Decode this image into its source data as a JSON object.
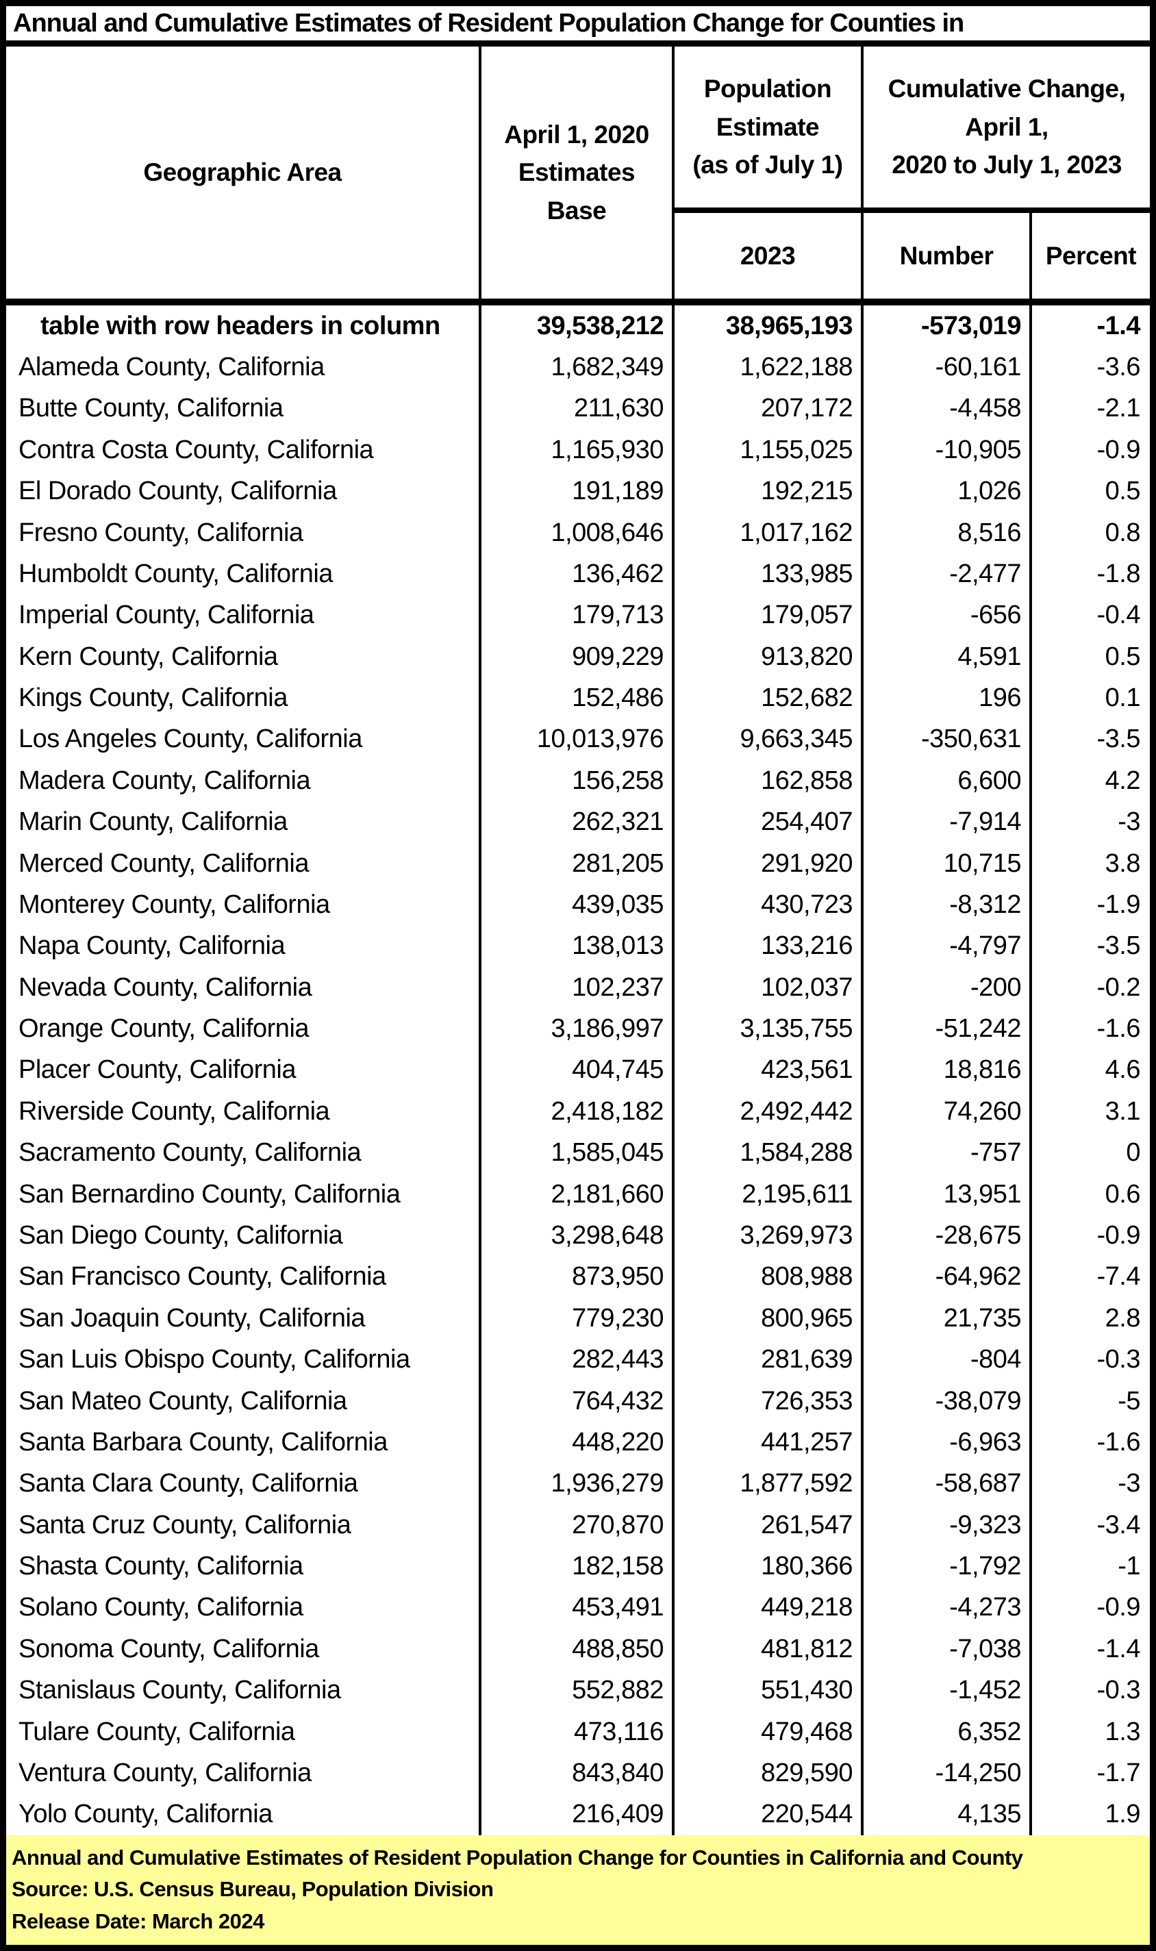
{
  "title": "Annual and Cumulative Estimates of Resident Population Change for Counties in",
  "header": {
    "geographic_area": "Geographic Area",
    "estimates_base": "April 1, 2020\nEstimates\nBase",
    "population_estimate": "Population\nEstimate\n(as of July 1)",
    "cumulative_change": "Cumulative Change,\nApril 1,\n2020 to July 1, 2023",
    "year": "2023",
    "number": "Number",
    "percent": "Percent"
  },
  "rows": [
    {
      "area": "table with row headers in column",
      "base": "39,538,212",
      "estimate": "38,965,193",
      "number": "-573,019",
      "percent": "-1.4",
      "bold": true,
      "indent": true
    },
    {
      "area": "Alameda County, California",
      "base": "1,682,349",
      "estimate": "1,622,188",
      "number": "-60,161",
      "percent": "-3.6"
    },
    {
      "area": "Butte County, California",
      "base": "211,630",
      "estimate": "207,172",
      "number": "-4,458",
      "percent": "-2.1"
    },
    {
      "area": "Contra Costa County, California",
      "base": "1,165,930",
      "estimate": "1,155,025",
      "number": "-10,905",
      "percent": "-0.9"
    },
    {
      "area": "El Dorado County, California",
      "base": "191,189",
      "estimate": "192,215",
      "number": "1,026",
      "percent": "0.5"
    },
    {
      "area": "Fresno County, California",
      "base": "1,008,646",
      "estimate": "1,017,162",
      "number": "8,516",
      "percent": "0.8"
    },
    {
      "area": "Humboldt County, California",
      "base": "136,462",
      "estimate": "133,985",
      "number": "-2,477",
      "percent": "-1.8"
    },
    {
      "area": "Imperial County, California",
      "base": "179,713",
      "estimate": "179,057",
      "number": "-656",
      "percent": "-0.4"
    },
    {
      "area": "Kern County, California",
      "base": "909,229",
      "estimate": "913,820",
      "number": "4,591",
      "percent": "0.5"
    },
    {
      "area": "Kings County, California",
      "base": "152,486",
      "estimate": "152,682",
      "number": "196",
      "percent": "0.1"
    },
    {
      "area": "Los Angeles County, California",
      "base": "10,013,976",
      "estimate": "9,663,345",
      "number": "-350,631",
      "percent": "-3.5"
    },
    {
      "area": "Madera County, California",
      "base": "156,258",
      "estimate": "162,858",
      "number": "6,600",
      "percent": "4.2"
    },
    {
      "area": "Marin County, California",
      "base": "262,321",
      "estimate": "254,407",
      "number": "-7,914",
      "percent": "-3"
    },
    {
      "area": "Merced County, California",
      "base": "281,205",
      "estimate": "291,920",
      "number": "10,715",
      "percent": "3.8"
    },
    {
      "area": "Monterey County, California",
      "base": "439,035",
      "estimate": "430,723",
      "number": "-8,312",
      "percent": "-1.9"
    },
    {
      "area": "Napa County, California",
      "base": "138,013",
      "estimate": "133,216",
      "number": "-4,797",
      "percent": "-3.5"
    },
    {
      "area": "Nevada County, California",
      "base": "102,237",
      "estimate": "102,037",
      "number": "-200",
      "percent": "-0.2"
    },
    {
      "area": "Orange County, California",
      "base": "3,186,997",
      "estimate": "3,135,755",
      "number": "-51,242",
      "percent": "-1.6"
    },
    {
      "area": "Placer County, California",
      "base": "404,745",
      "estimate": "423,561",
      "number": "18,816",
      "percent": "4.6"
    },
    {
      "area": "Riverside County, California",
      "base": "2,418,182",
      "estimate": "2,492,442",
      "number": "74,260",
      "percent": "3.1"
    },
    {
      "area": "Sacramento County, California",
      "base": "1,585,045",
      "estimate": "1,584,288",
      "number": "-757",
      "percent": "0"
    },
    {
      "area": "San Bernardino County, California",
      "base": "2,181,660",
      "estimate": "2,195,611",
      "number": "13,951",
      "percent": "0.6"
    },
    {
      "area": "San Diego County, California",
      "base": "3,298,648",
      "estimate": "3,269,973",
      "number": "-28,675",
      "percent": "-0.9"
    },
    {
      "area": "San Francisco County, California",
      "base": "873,950",
      "estimate": "808,988",
      "number": "-64,962",
      "percent": "-7.4"
    },
    {
      "area": "San Joaquin County, California",
      "base": "779,230",
      "estimate": "800,965",
      "number": "21,735",
      "percent": "2.8"
    },
    {
      "area": "San Luis Obispo County, California",
      "base": "282,443",
      "estimate": "281,639",
      "number": "-804",
      "percent": "-0.3"
    },
    {
      "area": "San Mateo County, California",
      "base": "764,432",
      "estimate": "726,353",
      "number": "-38,079",
      "percent": "-5"
    },
    {
      "area": "Santa Barbara County, California",
      "base": "448,220",
      "estimate": "441,257",
      "number": "-6,963",
      "percent": "-1.6"
    },
    {
      "area": "Santa Clara County, California",
      "base": "1,936,279",
      "estimate": "1,877,592",
      "number": "-58,687",
      "percent": "-3"
    },
    {
      "area": "Santa Cruz County, California",
      "base": "270,870",
      "estimate": "261,547",
      "number": "-9,323",
      "percent": "-3.4"
    },
    {
      "area": "Shasta County, California",
      "base": "182,158",
      "estimate": "180,366",
      "number": "-1,792",
      "percent": "-1"
    },
    {
      "area": "Solano County, California",
      "base": "453,491",
      "estimate": "449,218",
      "number": "-4,273",
      "percent": "-0.9"
    },
    {
      "area": "Sonoma County, California",
      "base": "488,850",
      "estimate": "481,812",
      "number": "-7,038",
      "percent": "-1.4"
    },
    {
      "area": "Stanislaus County, California",
      "base": "552,882",
      "estimate": "551,430",
      "number": "-1,452",
      "percent": "-0.3"
    },
    {
      "area": "Tulare County, California",
      "base": "473,116",
      "estimate": "479,468",
      "number": "6,352",
      "percent": "1.3"
    },
    {
      "area": "Ventura County, California",
      "base": "843,840",
      "estimate": "829,590",
      "number": "-14,250",
      "percent": "-1.7"
    },
    {
      "area": "Yolo County, California",
      "base": "216,409",
      "estimate": "220,544",
      "number": "4,135",
      "percent": "1.9"
    }
  ],
  "footer": {
    "line1": "Annual and Cumulative Estimates of Resident Population Change for Counties in California and County",
    "line2": "Source: U.S. Census Bureau, Population Division",
    "line3": "Release Date: March 2024"
  },
  "colors": {
    "text": "#000000",
    "border": "#000000",
    "background": "#FFFFFF",
    "footer_background": "#FFFF99"
  }
}
